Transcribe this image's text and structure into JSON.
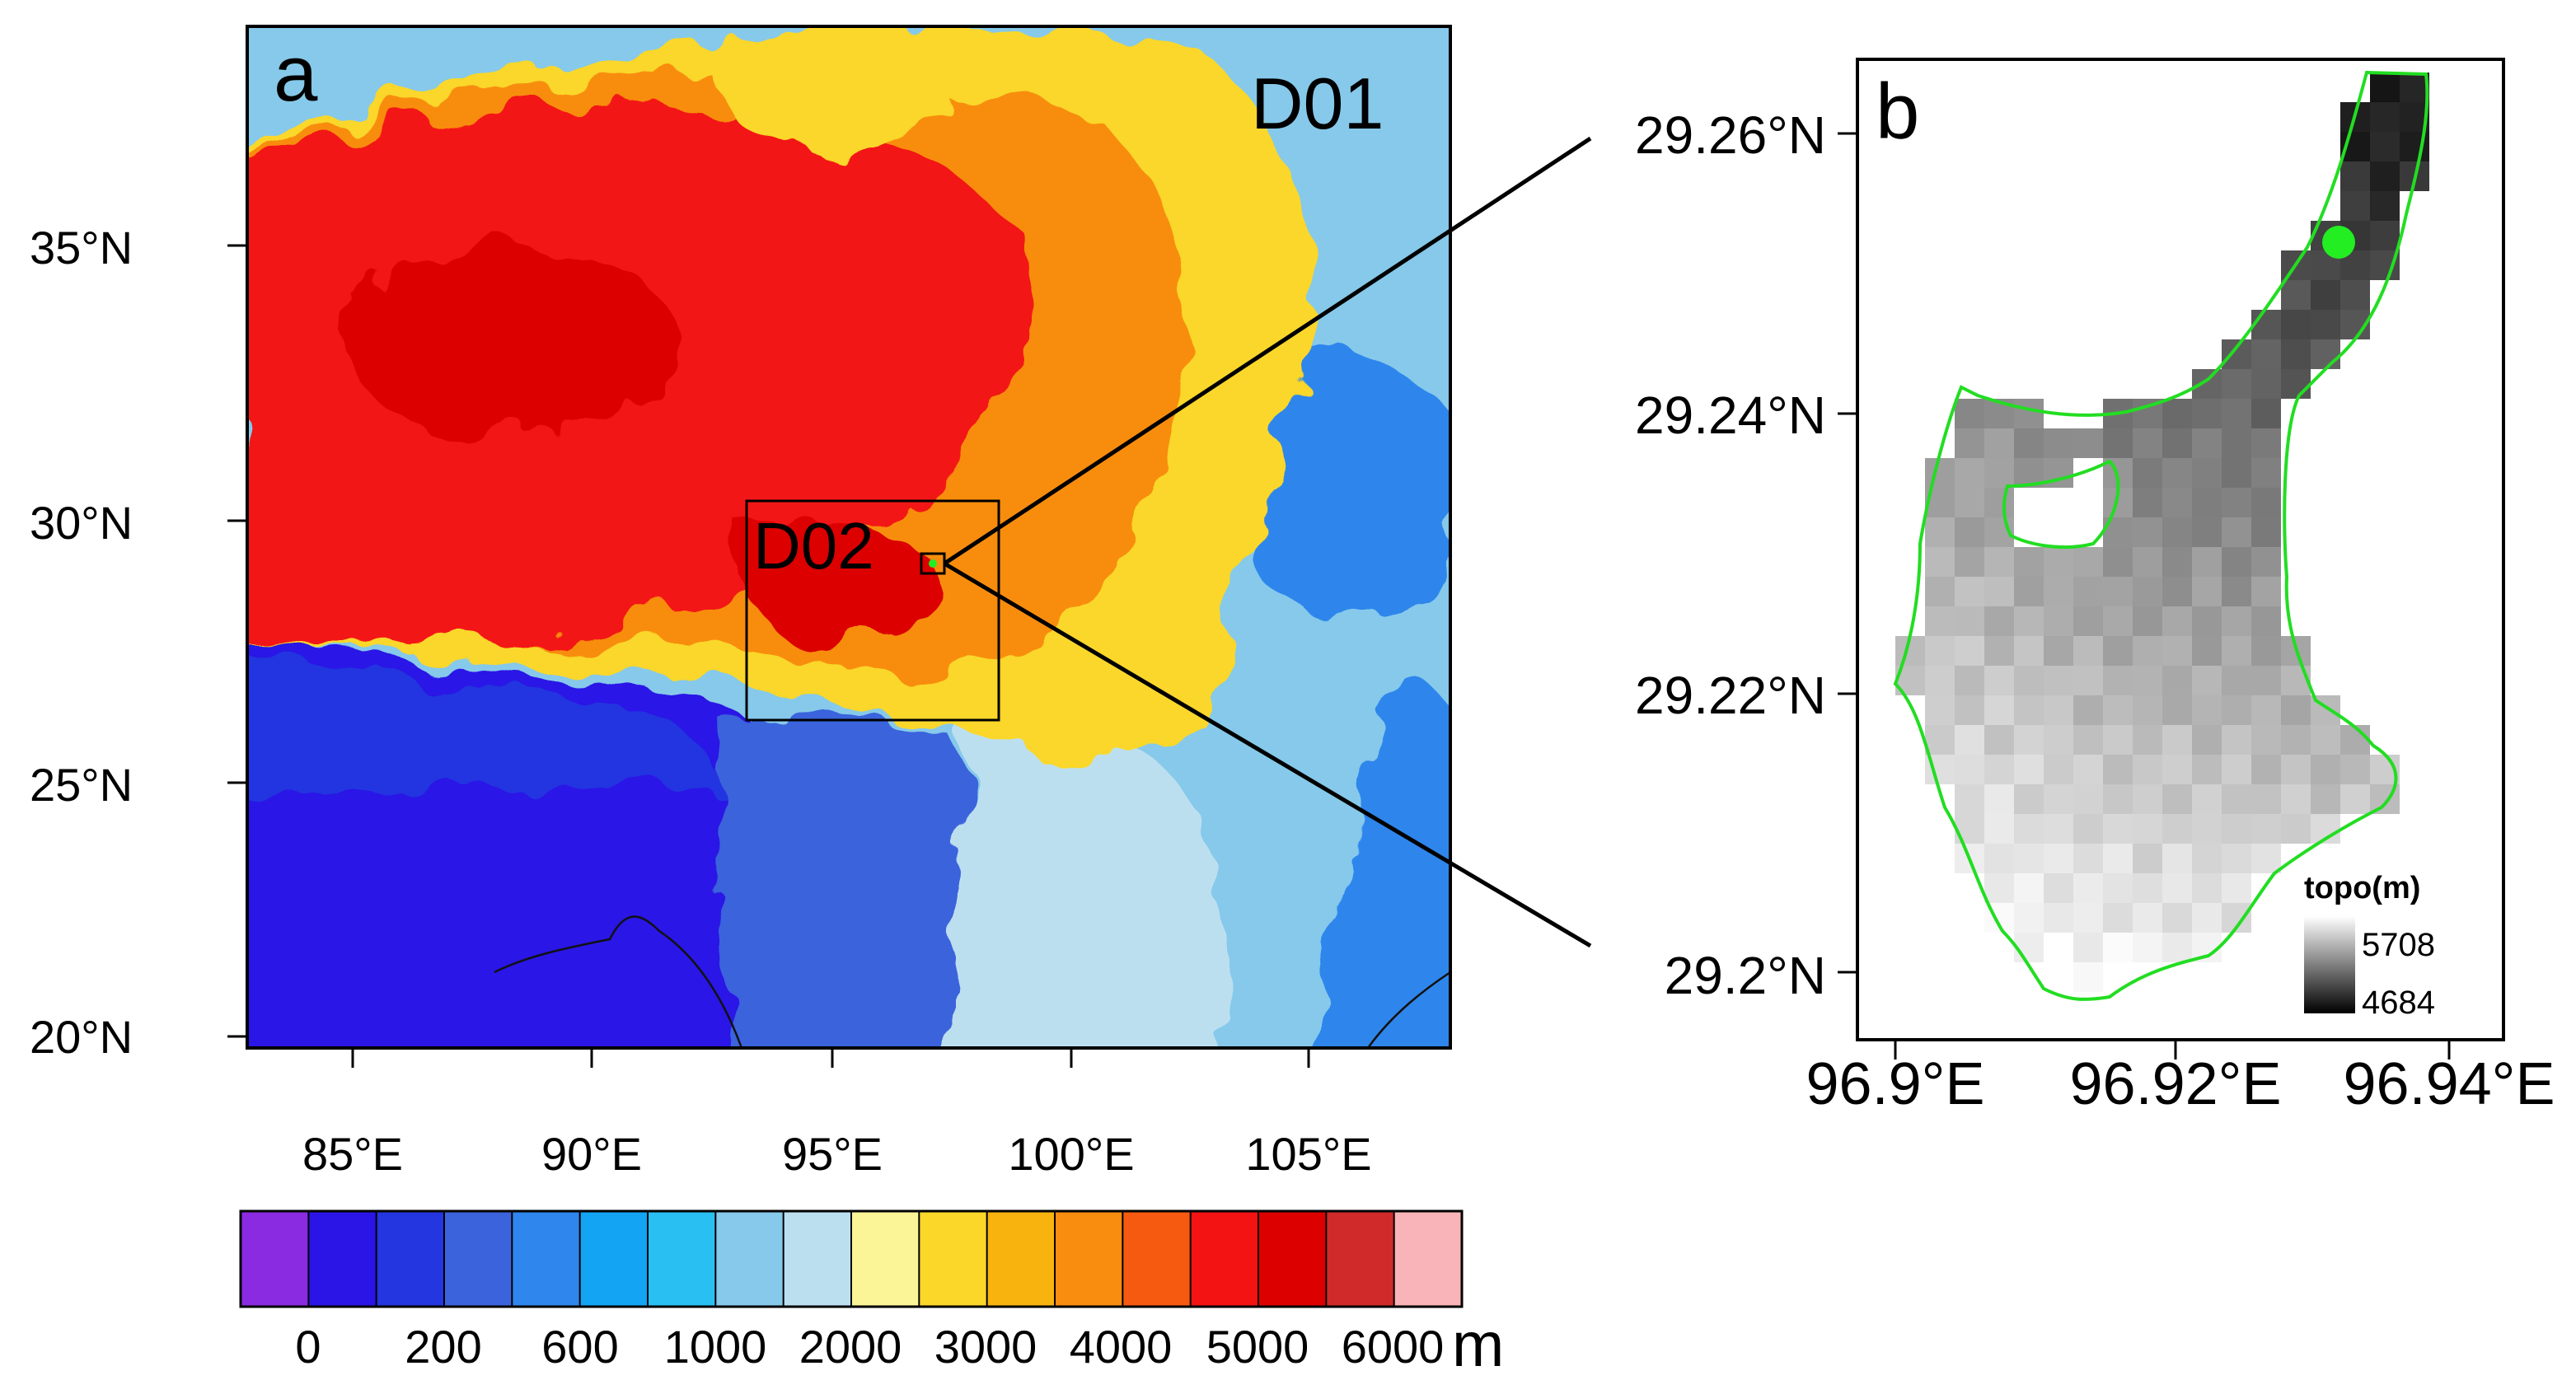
{
  "panel_a": {
    "letter": "a",
    "domain_outer": "D01",
    "domain_inner": "D02",
    "lat_ticks": [
      "35°N",
      "30°N",
      "25°N",
      "20°N"
    ],
    "lon_ticks": [
      "85°E",
      "90°E",
      "95°E",
      "100°E",
      "105°E"
    ]
  },
  "colorbar": {
    "unit": "m",
    "labels": [
      "0",
      "200",
      "600",
      "1000",
      "2000",
      "3000",
      "4000",
      "5000",
      "6000"
    ],
    "colors": [
      "#8a2be2",
      "#2a15e6",
      "#2436e0",
      "#3b64dc",
      "#2f86ec",
      "#14a4f4",
      "#2abff2",
      "#86c9ea",
      "#bcdff0",
      "#fbf597",
      "#fad729",
      "#f9b30f",
      "#f88d10",
      "#f65a10",
      "#f31313",
      "#dc0000",
      "#d12a2a",
      "#f8b4b8"
    ]
  },
  "panel_b": {
    "letter": "b",
    "lat_ticks": [
      "29.26°N",
      "29.24°N",
      "29.22°N",
      "29.2°N"
    ],
    "lon_ticks": [
      "96.9°E",
      "96.92°E",
      "96.94°E"
    ],
    "legend_title": "topo(m)",
    "legend_max": "5708",
    "legend_min": "4684",
    "outline_color": "#22dd22",
    "marker_color": "#22ee22"
  }
}
